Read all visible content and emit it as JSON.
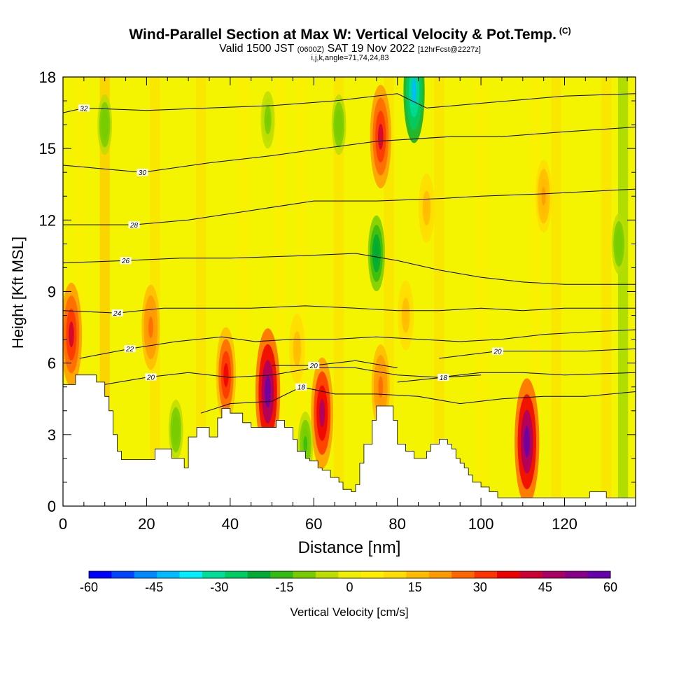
{
  "title": {
    "main": "Wind-Parallel Section at Max W: Vertical Velocity & Pot.Temp.",
    "copyright": "(C)",
    "valid": "Valid 1500 JST",
    "utc": "(0600Z)",
    "date": "SAT 19 Nov 2022",
    "forecast": "[12hrFcst@2227z]",
    "grid_info": "i,j,k,angle=71,74,24,83"
  },
  "chart_data": {
    "type": "heatmap",
    "xlabel": "Distance [nm]",
    "ylabel": "Height [Kft MSL]",
    "xlim": [
      0,
      137
    ],
    "ylim": [
      0,
      18
    ],
    "x_ticks": [
      0,
      20,
      40,
      60,
      80,
      100,
      120
    ],
    "y_ticks": [
      0,
      3,
      6,
      9,
      12,
      15,
      18
    ],
    "colorbar": {
      "label": "Vertical Velocity [cm/s]",
      "ticks": [
        "-60",
        "-45",
        "-30",
        "-15",
        "0",
        "15",
        "30",
        "45",
        "60"
      ],
      "colors": [
        "#0000ff",
        "#0044ff",
        "#0088ff",
        "#00bbff",
        "#00eeff",
        "#00dd99",
        "#00cc66",
        "#00aa33",
        "#33bb11",
        "#77cc00",
        "#bbdd00",
        "#eeee00",
        "#ffee00",
        "#ffdd00",
        "#ffbb00",
        "#ff9900",
        "#ff6600",
        "#ff3300",
        "#ee0000",
        "#cc0033",
        "#aa0066",
        "#880088",
        "#6600aa"
      ]
    },
    "contour_label": "Pot.Temp.",
    "contours": [
      {
        "value": 18,
        "label": "18",
        "label_x": 57,
        "points": [
          [
            33,
            3.9
          ],
          [
            40,
            4.3
          ],
          [
            50,
            4.4
          ],
          [
            57,
            5.0
          ],
          [
            65,
            4.7
          ],
          [
            75,
            4.7
          ],
          [
            85,
            4.6
          ],
          [
            95,
            4.3
          ],
          [
            105,
            4.5
          ],
          [
            115,
            4.6
          ],
          [
            125,
            4.6
          ],
          [
            137,
            4.8
          ]
        ]
      },
      {
        "value": 20,
        "label": "20",
        "label_x": 21,
        "points": [
          [
            10,
            5.1
          ],
          [
            20,
            5.4
          ],
          [
            30,
            5.6
          ],
          [
            40,
            5.4
          ],
          [
            50,
            5.5
          ],
          [
            60,
            5.8
          ],
          [
            70,
            5.8
          ],
          [
            80,
            5.5
          ],
          [
            90,
            5.4
          ],
          [
            100,
            5.6
          ],
          [
            110,
            5.6
          ],
          [
            120,
            5.5
          ],
          [
            137,
            5.6
          ]
        ]
      },
      {
        "value": 20,
        "label": "20",
        "label_x": 60,
        "points": [
          [
            50,
            5.9
          ],
          [
            60,
            5.9
          ],
          [
            70,
            6.1
          ],
          [
            80,
            5.8
          ]
        ]
      },
      {
        "value": 18,
        "label": "18",
        "label_x": 91,
        "points": [
          [
            80,
            5.2
          ],
          [
            91,
            5.4
          ],
          [
            100,
            5.5
          ]
        ]
      },
      {
        "value": 20,
        "label": "20",
        "label_x": 104,
        "points": [
          [
            90,
            6.2
          ],
          [
            104,
            6.5
          ],
          [
            115,
            6.5
          ],
          [
            125,
            6.5
          ],
          [
            137,
            6.6
          ]
        ]
      },
      {
        "value": 22,
        "label": "22",
        "label_x": 16,
        "points": [
          [
            4,
            6.2
          ],
          [
            16,
            6.6
          ],
          [
            27,
            6.9
          ],
          [
            38,
            7.1
          ],
          [
            46,
            6.9
          ],
          [
            55,
            7.0
          ],
          [
            65,
            7.0
          ],
          [
            75,
            7.1
          ],
          [
            85,
            7.0
          ],
          [
            95,
            6.9
          ],
          [
            105,
            7.0
          ],
          [
            115,
            7.2
          ],
          [
            125,
            7.3
          ],
          [
            137,
            7.4
          ]
        ]
      },
      {
        "value": 24,
        "label": "24",
        "label_x": 13,
        "points": [
          [
            0,
            8.2
          ],
          [
            13,
            8.1
          ],
          [
            24,
            8.3
          ],
          [
            34,
            8.3
          ],
          [
            45,
            8.3
          ],
          [
            58,
            8.4
          ],
          [
            70,
            8.3
          ],
          [
            80,
            8.2
          ],
          [
            90,
            8.2
          ],
          [
            100,
            8.3
          ],
          [
            110,
            8.2
          ],
          [
            120,
            8.3
          ],
          [
            137,
            8.3
          ]
        ]
      },
      {
        "value": 26,
        "label": "26",
        "label_x": 15,
        "points": [
          [
            0,
            10.2
          ],
          [
            15,
            10.3
          ],
          [
            28,
            10.4
          ],
          [
            40,
            10.4
          ],
          [
            57,
            10.5
          ],
          [
            70,
            10.6
          ],
          [
            80,
            10.3
          ],
          [
            90,
            9.9
          ],
          [
            100,
            9.6
          ],
          [
            110,
            9.4
          ],
          [
            120,
            9.3
          ],
          [
            137,
            9.3
          ]
        ]
      },
      {
        "value": 28,
        "label": "28",
        "label_x": 17,
        "points": [
          [
            0,
            11.8
          ],
          [
            17,
            11.8
          ],
          [
            30,
            12.0
          ],
          [
            45,
            12.4
          ],
          [
            60,
            12.8
          ],
          [
            75,
            12.8
          ],
          [
            90,
            12.9
          ],
          [
            100,
            13.0
          ],
          [
            115,
            13.1
          ],
          [
            137,
            13.3
          ]
        ]
      },
      {
        "value": 30,
        "label": "30",
        "label_x": 19,
        "points": [
          [
            0,
            14.3
          ],
          [
            19,
            14.0
          ],
          [
            35,
            14.4
          ],
          [
            50,
            14.7
          ],
          [
            62,
            15.0
          ],
          [
            75,
            15.3
          ],
          [
            93,
            15.5
          ],
          [
            105,
            15.5
          ],
          [
            120,
            15.7
          ],
          [
            137,
            15.9
          ]
        ]
      },
      {
        "value": 32,
        "label": "32",
        "label_x": 5,
        "points": [
          [
            0,
            16.5
          ],
          [
            5,
            16.7
          ],
          [
            20,
            16.6
          ],
          [
            35,
            16.7
          ],
          [
            50,
            16.8
          ],
          [
            65,
            17.0
          ],
          [
            80,
            17.3
          ],
          [
            87,
            16.7
          ],
          [
            100,
            16.9
          ],
          [
            120,
            17.2
          ],
          [
            137,
            17.3
          ]
        ]
      }
    ],
    "terrain": [
      [
        0,
        5.1
      ],
      [
        3,
        5.1
      ],
      [
        3,
        5.5
      ],
      [
        8,
        5.5
      ],
      [
        8,
        5.2
      ],
      [
        10,
        5.2
      ],
      [
        10,
        4.6
      ],
      [
        11,
        4.6
      ],
      [
        11,
        4.0
      ],
      [
        12,
        4.0
      ],
      [
        12,
        3.0
      ],
      [
        13,
        3.0
      ],
      [
        13,
        2.3
      ],
      [
        14,
        2.3
      ],
      [
        14,
        1.95
      ],
      [
        22,
        1.95
      ],
      [
        22,
        2.4
      ],
      [
        26,
        2.4
      ],
      [
        26,
        2.0
      ],
      [
        29,
        2.0
      ],
      [
        29,
        1.6
      ],
      [
        30,
        1.6
      ],
      [
        30,
        2.9
      ],
      [
        32,
        2.9
      ],
      [
        32,
        3.3
      ],
      [
        35,
        3.3
      ],
      [
        35,
        2.9
      ],
      [
        37,
        2.9
      ],
      [
        37,
        3.7
      ],
      [
        38,
        3.7
      ],
      [
        38,
        4.1
      ],
      [
        40,
        4.1
      ],
      [
        40,
        3.9
      ],
      [
        43,
        3.9
      ],
      [
        43,
        3.5
      ],
      [
        45,
        3.5
      ],
      [
        45,
        3.3
      ],
      [
        51,
        3.3
      ],
      [
        51,
        3.6
      ],
      [
        53,
        3.6
      ],
      [
        53,
        3.3
      ],
      [
        55,
        3.3
      ],
      [
        55,
        2.8
      ],
      [
        56,
        2.8
      ],
      [
        56,
        2.3
      ],
      [
        58,
        2.3
      ],
      [
        58,
        2.0
      ],
      [
        59,
        2.0
      ],
      [
        59,
        1.9
      ],
      [
        61,
        1.9
      ],
      [
        61,
        1.6
      ],
      [
        62,
        1.6
      ],
      [
        62,
        1.5
      ],
      [
        64,
        1.5
      ],
      [
        64,
        1.2
      ],
      [
        66,
        1.2
      ],
      [
        66,
        1.0
      ],
      [
        67,
        1.0
      ],
      [
        67,
        0.7
      ],
      [
        69,
        0.7
      ],
      [
        69,
        0.6
      ],
      [
        70,
        0.6
      ],
      [
        70,
        0.9
      ],
      [
        71,
        0.9
      ],
      [
        71,
        1.8
      ],
      [
        72,
        1.8
      ],
      [
        72,
        2.6
      ],
      [
        74,
        2.6
      ],
      [
        74,
        3.6
      ],
      [
        75,
        3.6
      ],
      [
        75,
        4.2
      ],
      [
        79,
        4.2
      ],
      [
        79,
        3.6
      ],
      [
        80,
        3.6
      ],
      [
        80,
        2.6
      ],
      [
        82,
        2.6
      ],
      [
        82,
        2.3
      ],
      [
        84,
        2.3
      ],
      [
        84,
        2.0
      ],
      [
        87,
        2.0
      ],
      [
        87,
        2.3
      ],
      [
        88,
        2.3
      ],
      [
        88,
        2.6
      ],
      [
        90,
        2.6
      ],
      [
        90,
        2.8
      ],
      [
        92,
        2.8
      ],
      [
        92,
        2.6
      ],
      [
        93,
        2.6
      ],
      [
        93,
        2.4
      ],
      [
        94,
        2.4
      ],
      [
        94,
        2.0
      ],
      [
        95,
        2.0
      ],
      [
        95,
        1.8
      ],
      [
        96,
        1.8
      ],
      [
        96,
        1.6
      ],
      [
        97,
        1.6
      ],
      [
        97,
        1.3
      ],
      [
        98,
        1.3
      ],
      [
        98,
        1.0
      ],
      [
        100,
        1.0
      ],
      [
        100,
        0.8
      ],
      [
        102,
        0.8
      ],
      [
        102,
        0.6
      ],
      [
        104,
        0.6
      ],
      [
        104,
        0.35
      ],
      [
        126,
        0.35
      ],
      [
        126,
        0.6
      ],
      [
        130,
        0.6
      ],
      [
        130,
        0.35
      ],
      [
        137,
        0.35
      ]
    ],
    "updraft_cores": [
      {
        "x": 2,
        "y": 7.2,
        "w": 40
      },
      {
        "x": 21,
        "y": 7.5,
        "w": 28
      },
      {
        "x": 39,
        "y": 5.5,
        "w": 35
      },
      {
        "x": 49,
        "y": 4.8,
        "w": 55
      },
      {
        "x": 62,
        "y": 3.9,
        "w": 45
      },
      {
        "x": 76,
        "y": 15.5,
        "w": 40
      },
      {
        "x": 76,
        "y": 5.0,
        "w": 28
      },
      {
        "x": 82,
        "y": 8.0,
        "w": 18
      },
      {
        "x": 87,
        "y": 12.5,
        "w": 18
      },
      {
        "x": 111,
        "y": 2.7,
        "w": 55
      },
      {
        "x": 115,
        "y": 13.0,
        "w": 20
      },
      {
        "x": 56,
        "y": 6.6,
        "w": 18
      }
    ],
    "downdraft_cores": [
      {
        "x": 84,
        "y": 17.4,
        "w": -40
      },
      {
        "x": 75,
        "y": 10.6,
        "w": -22
      },
      {
        "x": 10,
        "y": 16.0,
        "w": -12
      },
      {
        "x": 49,
        "y": 16.2,
        "w": -10
      },
      {
        "x": 66,
        "y": 16.0,
        "w": -12
      },
      {
        "x": 133,
        "y": 11.0,
        "w": -12
      },
      {
        "x": 58,
        "y": 2.6,
        "w": -15
      },
      {
        "x": 27,
        "y": 3.2,
        "w": -12
      }
    ]
  }
}
